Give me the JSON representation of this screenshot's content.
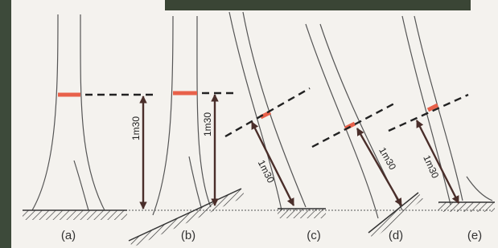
{
  "panels": [
    {
      "label": "(a)",
      "measure": "1m30"
    },
    {
      "label": "(b)",
      "measure": "1m30"
    },
    {
      "label": "(c)",
      "measure": "1m30"
    },
    {
      "label": "(d)",
      "measure": "1m30"
    },
    {
      "label": "(e)",
      "measure": "1m30"
    }
  ]
}
